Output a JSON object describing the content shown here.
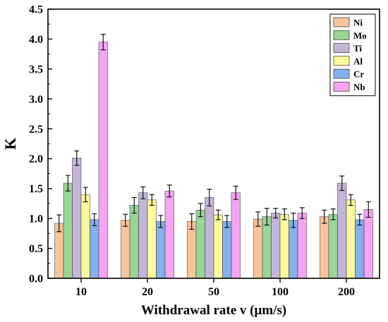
{
  "chart_data": {
    "type": "bar",
    "xlabel": "Withdrawal rate v (μm/s)",
    "ylabel": "K",
    "ylim": [
      0,
      4.5
    ],
    "yticks": [
      "0.0",
      "0.5",
      "1.0",
      "1.5",
      "2.0",
      "2.5",
      "3.0",
      "3.5",
      "4.0",
      "4.5"
    ],
    "categories": [
      "10",
      "20",
      "50",
      "100",
      "200"
    ],
    "legend_position": "top-right",
    "grid": false,
    "error_bars": true,
    "series": [
      {
        "name": "Ni",
        "color": "#f9c49a",
        "values": [
          0.92,
          0.97,
          0.95,
          0.99,
          1.03
        ],
        "errors": [
          0.14,
          0.1,
          0.13,
          0.12,
          0.11
        ]
      },
      {
        "name": "Mo",
        "color": "#99d594",
        "values": [
          1.59,
          1.22,
          1.14,
          1.03,
          1.07
        ],
        "errors": [
          0.13,
          0.13,
          0.11,
          0.14,
          0.09
        ]
      },
      {
        "name": "Ti",
        "color": "#c3b5da",
        "values": [
          2.01,
          1.43,
          1.35,
          1.09,
          1.59
        ],
        "errors": [
          0.12,
          0.1,
          0.14,
          0.08,
          0.12
        ]
      },
      {
        "name": "Al",
        "color": "#fbfb9a",
        "values": [
          1.4,
          1.31,
          1.06,
          1.07,
          1.31
        ],
        "errors": [
          0.12,
          0.09,
          0.08,
          0.09,
          0.09
        ]
      },
      {
        "name": "Cr",
        "color": "#84b0ec",
        "values": [
          0.98,
          0.95,
          0.95,
          0.97,
          0.98
        ],
        "errors": [
          0.1,
          0.1,
          0.1,
          0.12,
          0.09
        ]
      },
      {
        "name": "Nb",
        "color": "#f6a4f4",
        "values": [
          3.95,
          1.46,
          1.43,
          1.09,
          1.15
        ],
        "errors": [
          0.13,
          0.1,
          0.11,
          0.09,
          0.13
        ]
      }
    ]
  }
}
